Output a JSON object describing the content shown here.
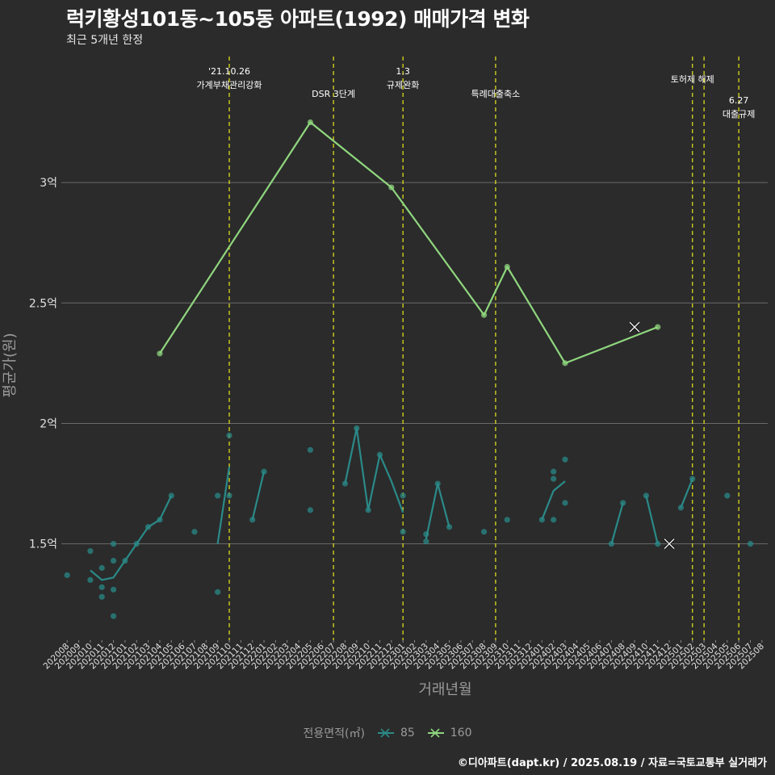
{
  "title": "럭키황성101동~105동 아파트(1992) 매매가격 변화",
  "subtitle": "최근 5개년 한정",
  "caption": "©디아파트(dapt.kr) / 2025.08.19 / 자료=국토교통부 실거래가",
  "colors": {
    "background": "#2b2b2b",
    "grid": "#6a6a6a",
    "series_85": "#2a8a88",
    "series_160": "#8fd67e",
    "event_line": "#e8e81e"
  },
  "chart_data": {
    "type": "line",
    "xlabel": "거래년월",
    "ylabel": "평균가(원)",
    "ylim": [
      1.1,
      3.55
    ],
    "yticks": [
      {
        "value": 1.5,
        "label": "1.5억"
      },
      {
        "value": 2.0,
        "label": "2억"
      },
      {
        "value": 2.5,
        "label": "2.5억"
      },
      {
        "value": 3.0,
        "label": "3억"
      }
    ],
    "x": [
      "202008",
      "202009",
      "202010",
      "202011",
      "202012",
      "202101",
      "202102",
      "202103",
      "202104",
      "202105",
      "202106",
      "202107",
      "202108",
      "202109",
      "202110",
      "202111",
      "202112",
      "202201",
      "202202",
      "202203",
      "202204",
      "202205",
      "202206",
      "202207",
      "202208",
      "202209",
      "202210",
      "202211",
      "202212",
      "202301",
      "202302",
      "202303",
      "202304",
      "202305",
      "202306",
      "202307",
      "202308",
      "202309",
      "202310",
      "202311",
      "202312",
      "202401",
      "202402",
      "202403",
      "202404",
      "202405",
      "202406",
      "202407",
      "202408",
      "202409",
      "202410",
      "202411",
      "202412",
      "202501",
      "202502",
      "202503",
      "202504",
      "202505",
      "202506",
      "202507",
      "202508"
    ],
    "legend_title": "전용면적(㎡)",
    "series": [
      {
        "name": "85",
        "line": [
          {
            "x": "202010",
            "y": 1.39
          },
          {
            "x": "202011",
            "y": 1.35
          },
          {
            "x": "202012",
            "y": 1.36
          },
          {
            "x": "202101",
            "y": 1.43
          },
          {
            "x": "202102",
            "y": 1.5
          },
          {
            "x": "202103",
            "y": 1.57
          },
          {
            "x": "202104",
            "y": 1.6
          },
          {
            "x": "202105",
            "y": 1.7
          },
          null,
          {
            "x": "202109",
            "y": 1.5
          },
          {
            "x": "202110",
            "y": 1.82
          },
          null,
          {
            "x": "202112",
            "y": 1.6
          },
          {
            "x": "202201",
            "y": 1.8
          },
          null,
          {
            "x": "202208",
            "y": 1.75
          },
          {
            "x": "202209",
            "y": 1.98
          },
          {
            "x": "202210",
            "y": 1.64
          },
          {
            "x": "202211",
            "y": 1.87
          },
          {
            "x": "202212",
            "y": 1.76
          },
          {
            "x": "202301",
            "y": 1.63
          },
          null,
          {
            "x": "202303",
            "y": 1.52
          },
          {
            "x": "202304",
            "y": 1.75
          },
          {
            "x": "202305",
            "y": 1.57
          },
          null,
          {
            "x": "202401",
            "y": 1.6
          },
          {
            "x": "202402",
            "y": 1.72
          },
          {
            "x": "202403",
            "y": 1.76
          },
          null,
          {
            "x": "202407",
            "y": 1.5
          },
          {
            "x": "202408",
            "y": 1.67
          },
          null,
          {
            "x": "202410",
            "y": 1.7
          },
          {
            "x": "202411",
            "y": 1.5
          },
          null,
          {
            "x": "202501",
            "y": 1.65
          },
          {
            "x": "202502",
            "y": 1.77
          }
        ],
        "points": [
          {
            "x": "202008",
            "y": 1.37
          },
          {
            "x": "202010",
            "y": 1.47
          },
          {
            "x": "202010",
            "y": 1.35
          },
          {
            "x": "202011",
            "y": 1.4
          },
          {
            "x": "202011",
            "y": 1.32
          },
          {
            "x": "202011",
            "y": 1.28
          },
          {
            "x": "202012",
            "y": 1.5
          },
          {
            "x": "202012",
            "y": 1.43
          },
          {
            "x": "202012",
            "y": 1.31
          },
          {
            "x": "202012",
            "y": 1.2
          },
          {
            "x": "202101",
            "y": 1.43
          },
          {
            "x": "202102",
            "y": 1.5
          },
          {
            "x": "202103",
            "y": 1.57
          },
          {
            "x": "202104",
            "y": 1.6
          },
          {
            "x": "202105",
            "y": 1.7
          },
          {
            "x": "202107",
            "y": 1.55
          },
          {
            "x": "202109",
            "y": 1.7
          },
          {
            "x": "202109",
            "y": 1.3
          },
          {
            "x": "202110",
            "y": 1.95
          },
          {
            "x": "202110",
            "y": 1.7
          },
          {
            "x": "202112",
            "y": 1.6
          },
          {
            "x": "202201",
            "y": 1.8
          },
          {
            "x": "202205",
            "y": 1.89
          },
          {
            "x": "202205",
            "y": 1.64
          },
          {
            "x": "202208",
            "y": 1.75
          },
          {
            "x": "202209",
            "y": 1.98
          },
          {
            "x": "202210",
            "y": 1.64
          },
          {
            "x": "202211",
            "y": 1.87
          },
          {
            "x": "202301",
            "y": 1.7
          },
          {
            "x": "202301",
            "y": 1.55
          },
          {
            "x": "202303",
            "y": 1.54
          },
          {
            "x": "202303",
            "y": 1.51
          },
          {
            "x": "202304",
            "y": 1.75
          },
          {
            "x": "202305",
            "y": 1.57
          },
          {
            "x": "202308",
            "y": 1.55
          },
          {
            "x": "202310",
            "y": 1.6
          },
          {
            "x": "202401",
            "y": 1.6
          },
          {
            "x": "202402",
            "y": 1.8
          },
          {
            "x": "202402",
            "y": 1.77
          },
          {
            "x": "202402",
            "y": 1.6
          },
          {
            "x": "202403",
            "y": 1.85
          },
          {
            "x": "202403",
            "y": 1.67
          },
          {
            "x": "202407",
            "y": 1.5
          },
          {
            "x": "202408",
            "y": 1.67
          },
          {
            "x": "202410",
            "y": 1.7
          },
          {
            "x": "202411",
            "y": 1.5
          },
          {
            "x": "202501",
            "y": 1.65
          },
          {
            "x": "202502",
            "y": 1.77
          },
          {
            "x": "202505",
            "y": 1.7
          },
          {
            "x": "202507",
            "y": 1.5
          }
        ],
        "marker_x": [
          {
            "x": "202412",
            "y": 1.5
          }
        ]
      },
      {
        "name": "160",
        "line": [
          {
            "x": "202104",
            "y": 2.29
          },
          {
            "x": "202205",
            "y": 3.25
          },
          {
            "x": "202212",
            "y": 2.98
          },
          {
            "x": "202308",
            "y": 2.45
          },
          {
            "x": "202310",
            "y": 2.65
          },
          {
            "x": "202403",
            "y": 2.25
          },
          {
            "x": "202411",
            "y": 2.4
          }
        ],
        "points": [
          {
            "x": "202104",
            "y": 2.29
          },
          {
            "x": "202205",
            "y": 3.25
          },
          {
            "x": "202212",
            "y": 2.98
          },
          {
            "x": "202308",
            "y": 2.45
          },
          {
            "x": "202310",
            "y": 2.65
          },
          {
            "x": "202403",
            "y": 2.25
          },
          {
            "x": "202411",
            "y": 2.4
          }
        ],
        "marker_x": [
          {
            "x": "202409",
            "y": 2.4
          }
        ]
      }
    ],
    "events": [
      {
        "x": "202110",
        "lines": [
          "'21.10.26",
          "가계부채관리강화"
        ],
        "tier": 0
      },
      {
        "x": "202207",
        "lines": [
          "DSR 3단계"
        ],
        "tier": 1
      },
      {
        "x": "202301",
        "lines": [
          "1.3",
          "규제완화"
        ],
        "tier": 0
      },
      {
        "x": "202309",
        "lines": [
          "특례대출축소"
        ],
        "tier": 1
      },
      {
        "x": "202502",
        "lines": [
          "토허제 해제"
        ],
        "tier": 2
      },
      {
        "x": "202503",
        "lines": [],
        "tier": 2
      },
      {
        "x": "202506",
        "lines": [
          "6.27",
          "대출규제"
        ],
        "tier": 3
      }
    ]
  }
}
